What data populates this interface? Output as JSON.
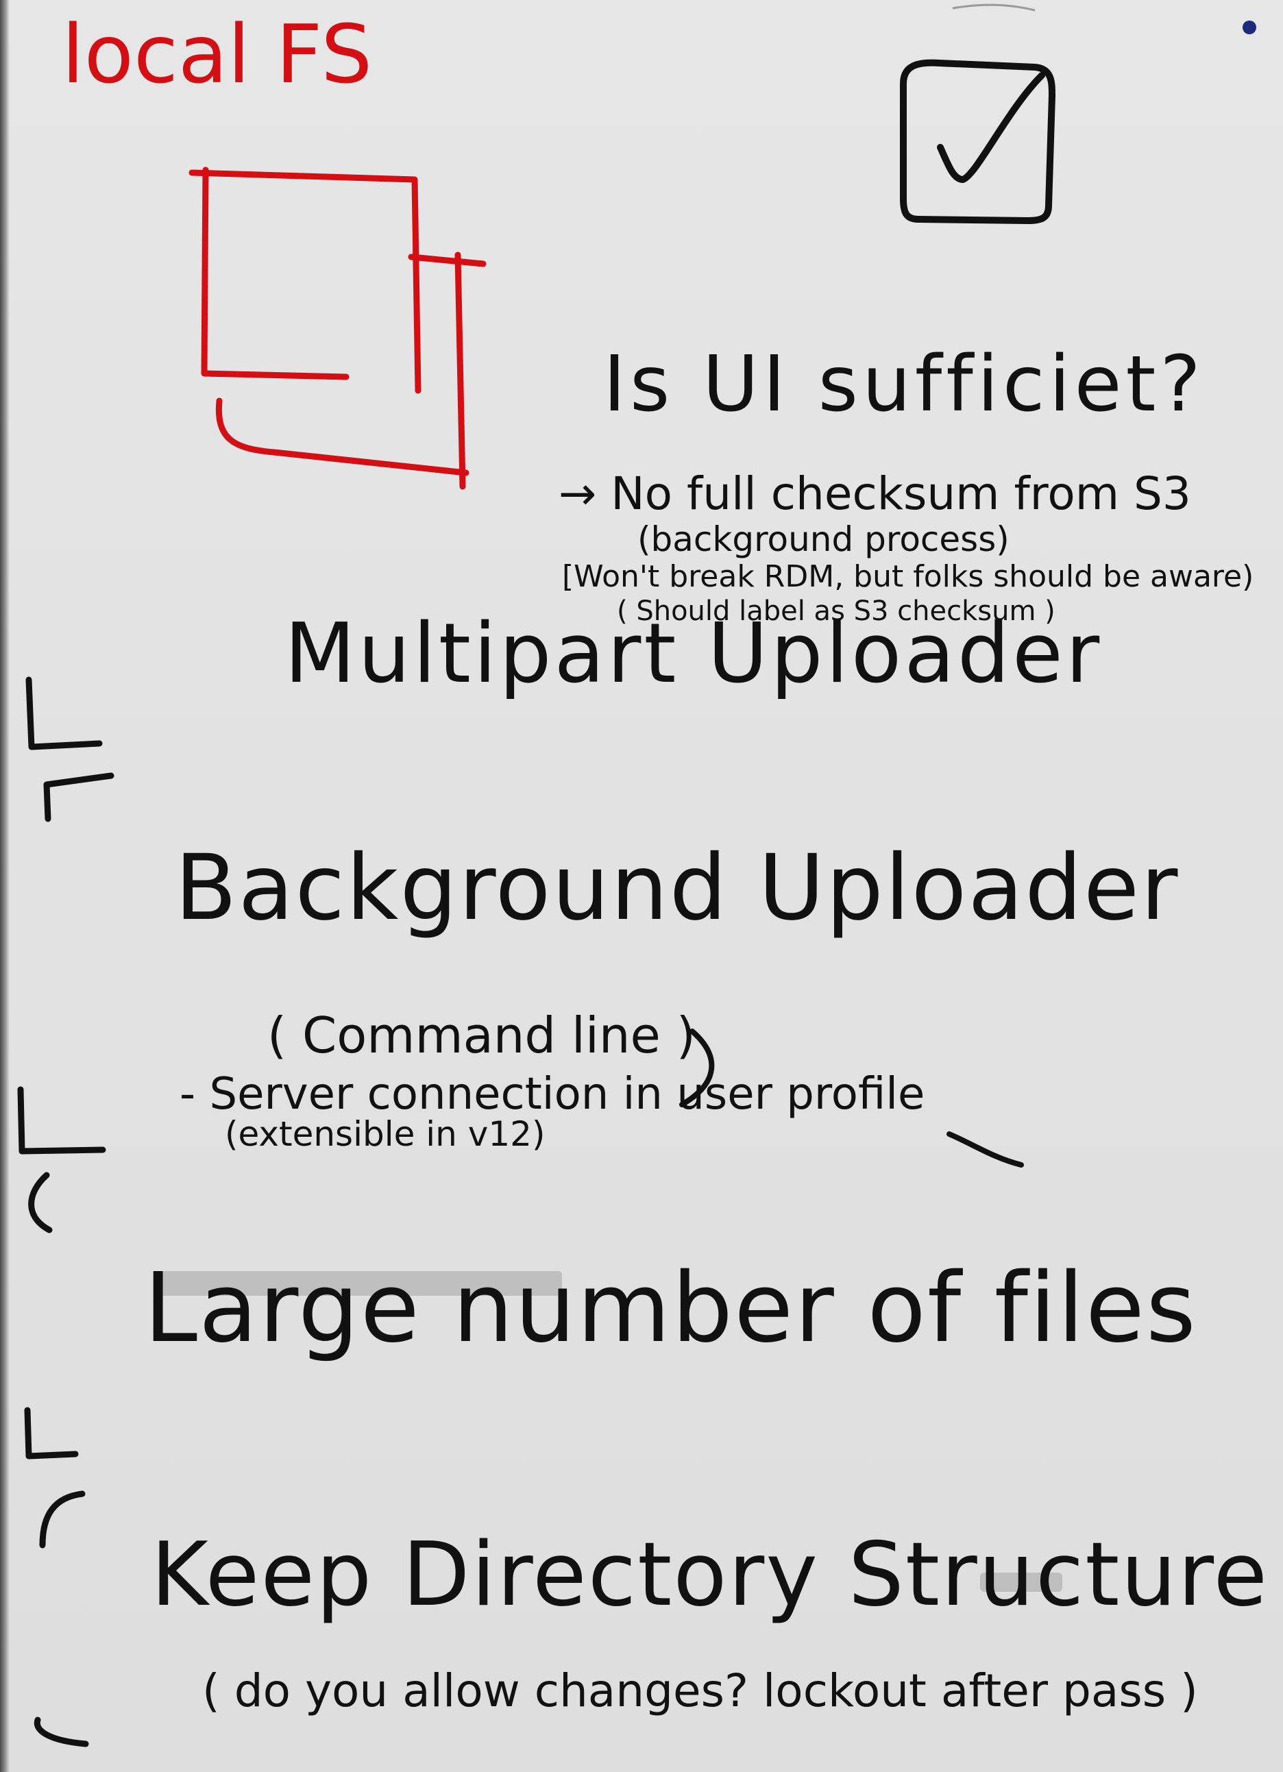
{
  "board": {
    "title": "local FS",
    "question": "Is UI sufficiet?",
    "notes": [
      "→ No full checksum from S3",
      "(background process)",
      "[Won't break RDM, but folks should be aware)",
      "( Should label as S3 checksum )"
    ],
    "sections": [
      {
        "heading": "Multipart Uploader"
      },
      {
        "heading": "Background Uploader",
        "lines": [
          "( Command line )",
          "- Server connection in user profile",
          "(extensible in v12)"
        ]
      },
      {
        "heading": "Large number of files"
      },
      {
        "heading": "Keep Directory Structure",
        "lines": [
          "( do you allow changes? lockout after pass )"
        ]
      }
    ]
  },
  "colors": {
    "red_marker": "#d40f14",
    "black_marker": "#111111",
    "board": "#e3e3e3"
  },
  "icons": [
    "checkbox-checked-icon",
    "stacked-windows-icon",
    "bracket-marker-icon"
  ]
}
